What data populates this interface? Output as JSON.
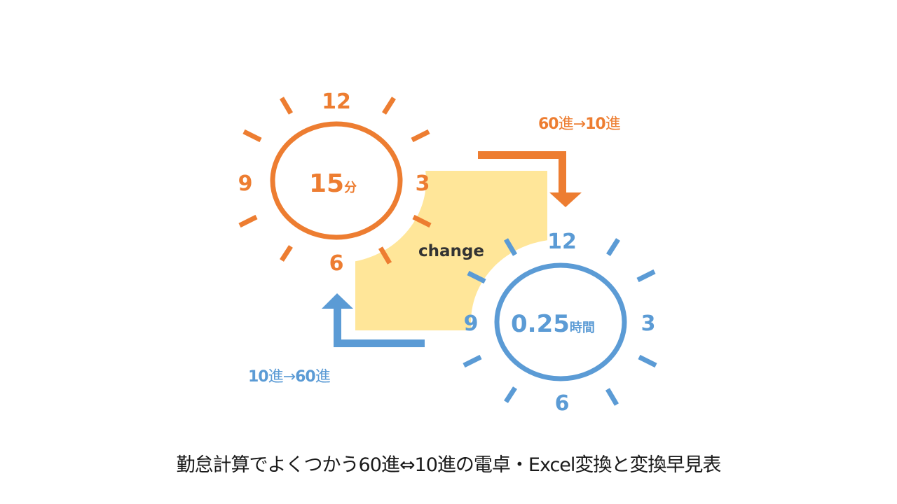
{
  "colors": {
    "orange": "#ED7D31",
    "blue": "#5B9BD5",
    "yellow": "#FFE699",
    "dark": "#333333"
  },
  "clock_60": {
    "n12": "12",
    "n3": "3",
    "n6": "6",
    "n9": "9",
    "value": "15",
    "unit": "分"
  },
  "clock_10": {
    "n12": "12",
    "n3": "3",
    "n6": "6",
    "n9": "9",
    "value": "0.25",
    "unit": "時間"
  },
  "center_label": "change",
  "arrow_60_to_10": {
    "from": "60",
    "from_unit": "進",
    "arrow": "→",
    "to": "10",
    "to_unit": "進"
  },
  "arrow_10_to_60": {
    "from": "10",
    "from_unit": "進",
    "arrow": "→",
    "to": "60",
    "to_unit": "進"
  },
  "caption": "勤怠計算でよくつかう60進⇔10進の電卓・Excel変換と変換早見表"
}
